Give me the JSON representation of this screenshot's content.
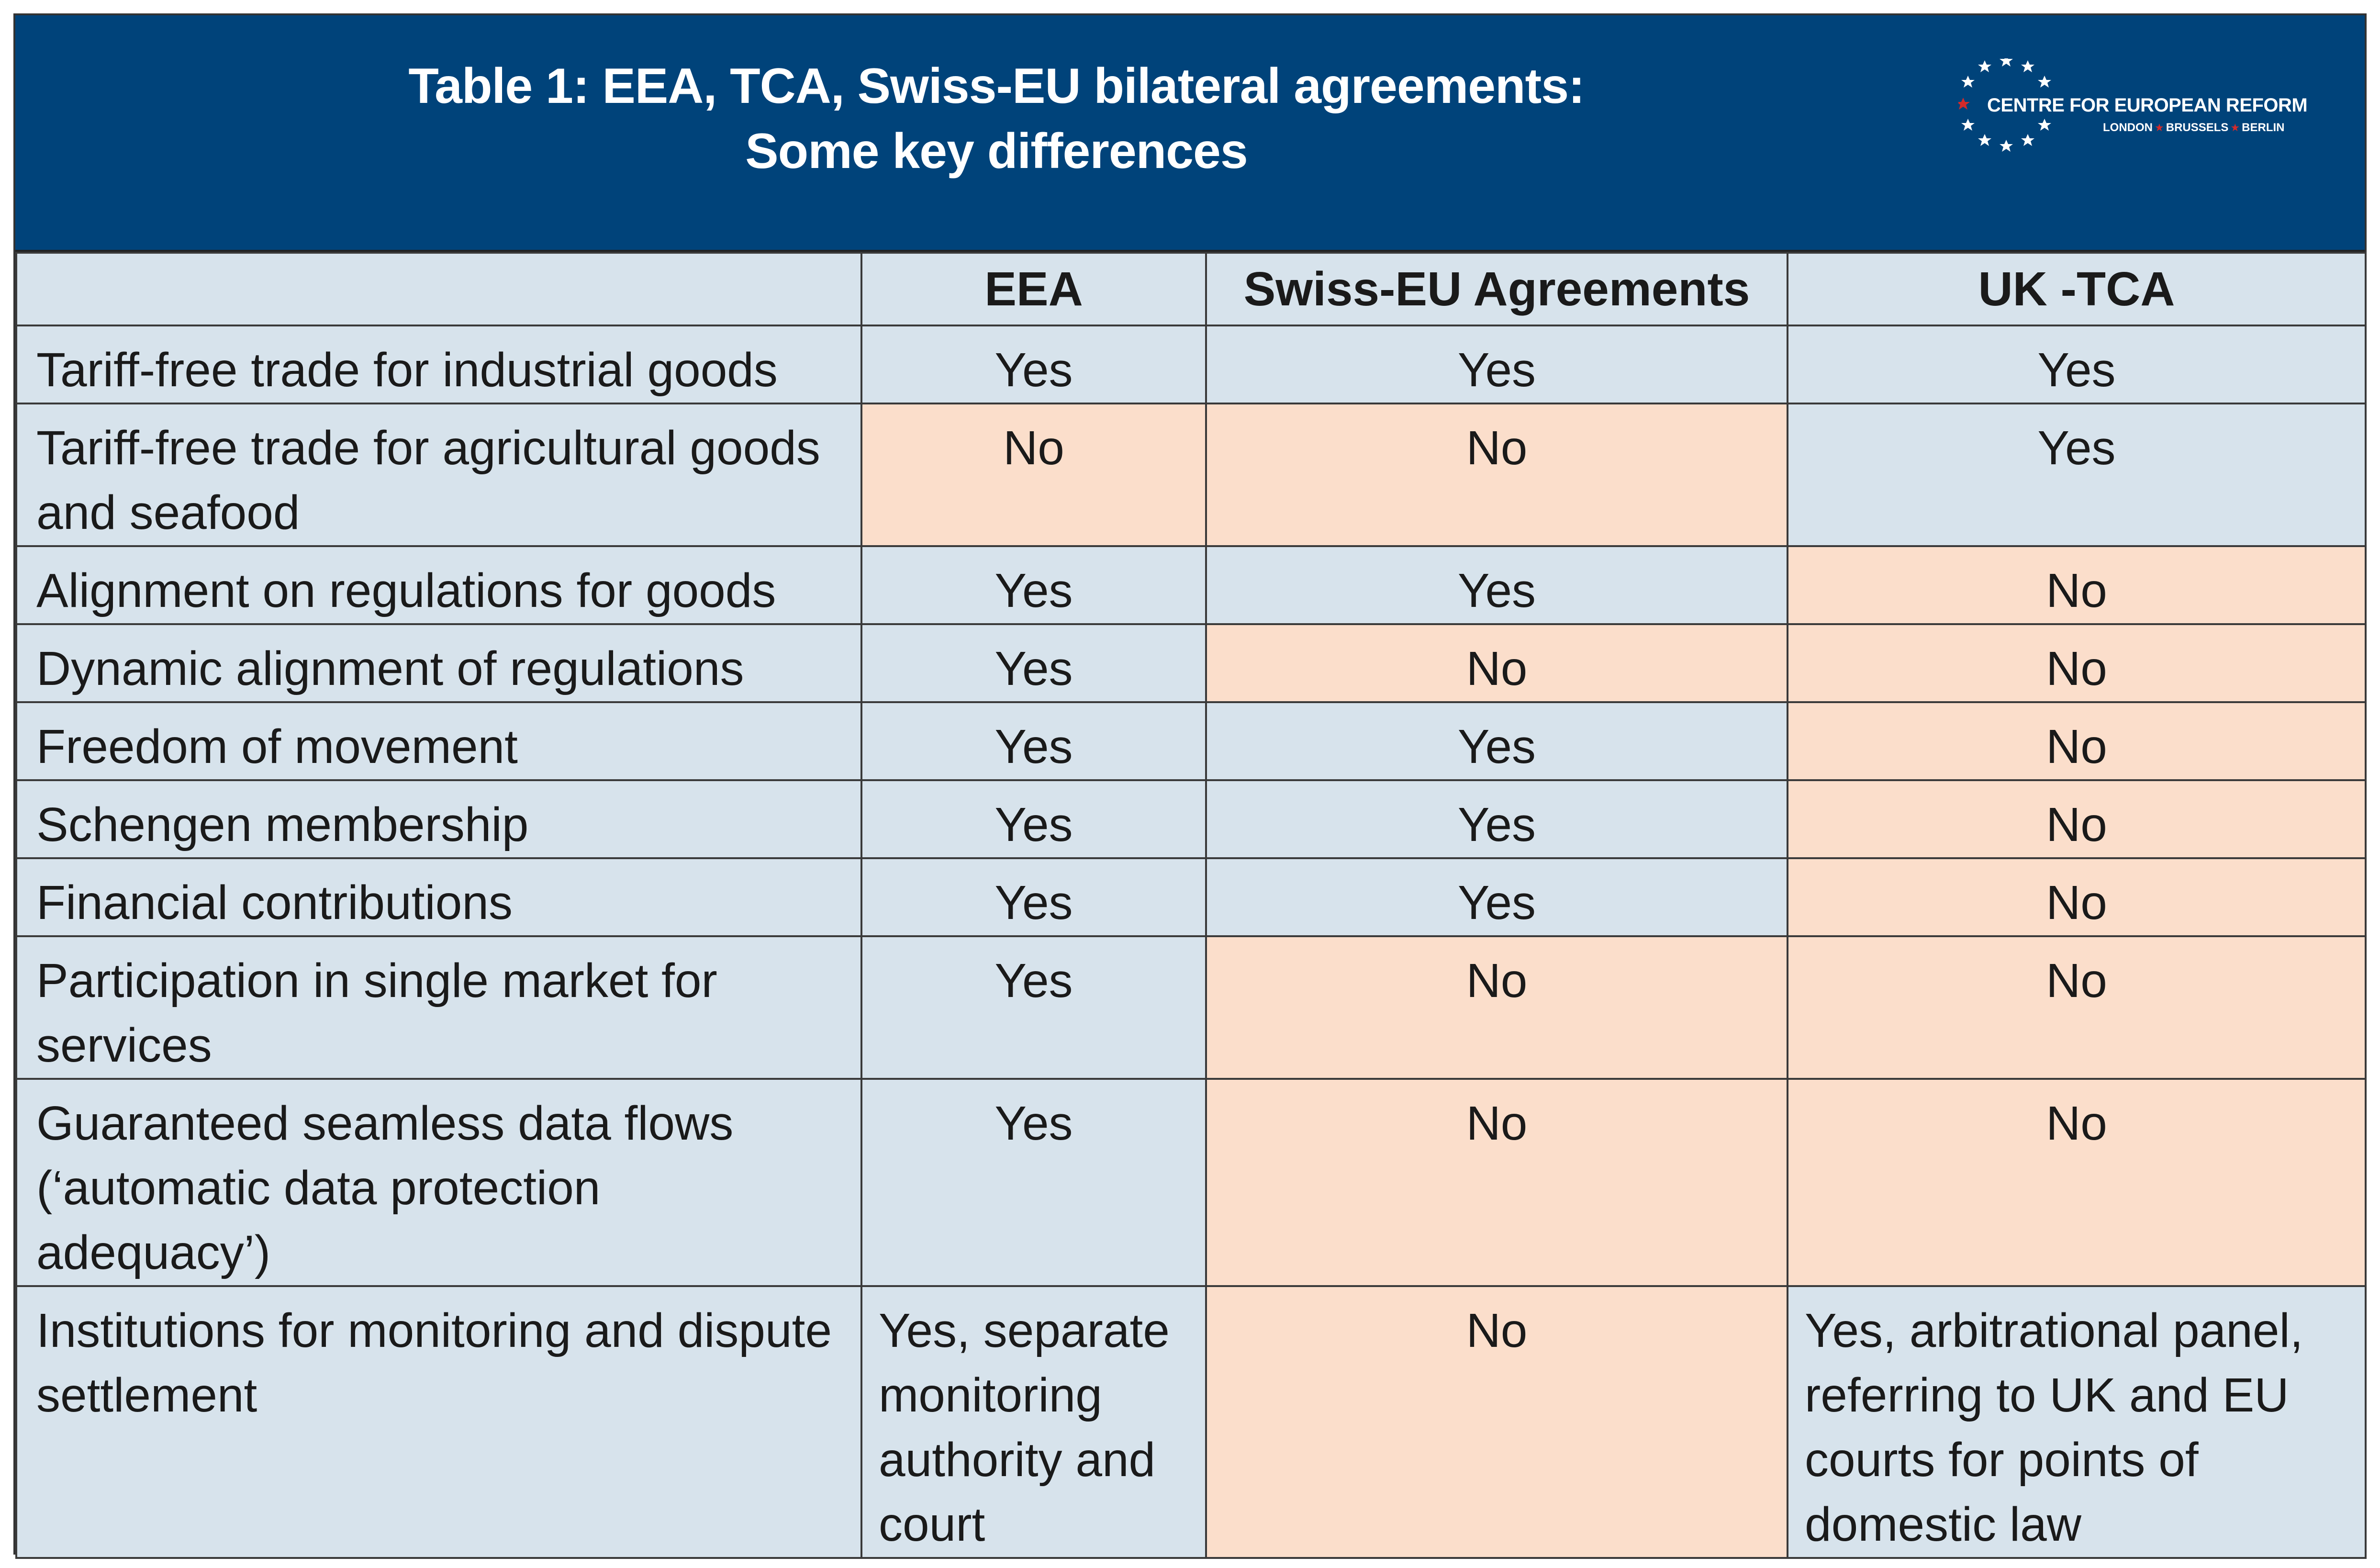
{
  "header": {
    "title_line1": "Table 1: EEA, TCA, Swiss-EU bilateral agreements:",
    "title_line2": "Some key differences",
    "background_color": "#00437a"
  },
  "logo": {
    "name": "CENTRE FOR EUROPEAN REFORM",
    "city1": "LONDON",
    "city2": "BRUSSELS",
    "city3": "BERLIN",
    "star_color": "#ffffff",
    "accent_star_color": "#d42a2a"
  },
  "colors": {
    "cell_blue": "#d7e3ec",
    "cell_peach": "#fbdecb"
  },
  "table": {
    "columns": [
      "",
      "EEA",
      "Swiss-EU Agreements",
      "UK -TCA"
    ],
    "rows": [
      {
        "label": "Tariff-free trade for industrial goods",
        "eea": "Yes",
        "swiss": "Yes",
        "uk": "Yes"
      },
      {
        "label": "Tariff-free trade for agricultural goods and seafood",
        "eea": "No",
        "swiss": "No",
        "uk": "Yes"
      },
      {
        "label": "Alignment on regulations for goods",
        "eea": "Yes",
        "swiss": "Yes",
        "uk": "No"
      },
      {
        "label": "Dynamic alignment of regulations",
        "eea": "Yes",
        "swiss": "No",
        "uk": "No"
      },
      {
        "label": "Freedom of movement",
        "eea": "Yes",
        "swiss": "Yes",
        "uk": "No"
      },
      {
        "label": "Schengen membership",
        "eea": "Yes",
        "swiss": "Yes",
        "uk": "No"
      },
      {
        "label": "Financial contributions",
        "eea": "Yes",
        "swiss": "Yes",
        "uk": "No"
      },
      {
        "label": "Participation in single market for services",
        "eea": "Yes",
        "swiss": "No",
        "uk": "No"
      },
      {
        "label": "Guaranteed seamless data flows (‘automatic data protection adequacy’)",
        "eea": "Yes",
        "swiss": "No",
        "uk": "No"
      },
      {
        "label": "Institutions for monitoring and dispute settlement",
        "eea": "Yes, separate monitoring authority and court",
        "swiss": "No",
        "uk": "Yes, arbitrational panel, referring to UK and EU courts for points of domestic law"
      }
    ]
  }
}
